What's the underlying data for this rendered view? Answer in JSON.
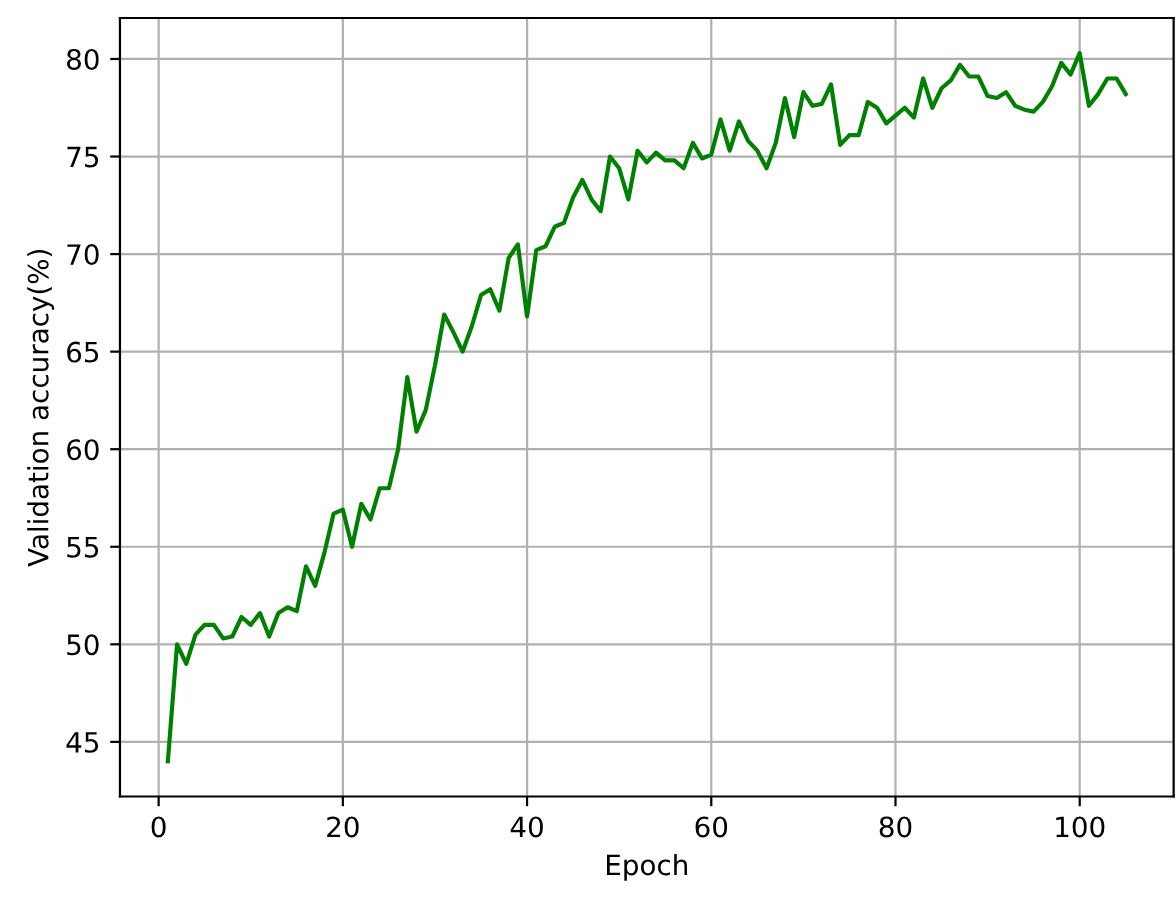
{
  "chart_data": {
    "type": "line",
    "xlabel": "Epoch",
    "ylabel": "Validation accuracy(%)",
    "x": [
      1,
      2,
      3,
      4,
      5,
      6,
      7,
      8,
      9,
      10,
      11,
      12,
      13,
      14,
      15,
      16,
      17,
      18,
      19,
      20,
      21,
      22,
      23,
      24,
      25,
      26,
      27,
      28,
      29,
      30,
      31,
      32,
      33,
      34,
      35,
      36,
      37,
      38,
      39,
      40,
      41,
      42,
      43,
      44,
      45,
      46,
      47,
      48,
      49,
      50,
      51,
      52,
      53,
      54,
      55,
      56,
      57,
      58,
      59,
      60,
      61,
      62,
      63,
      64,
      65,
      66,
      67,
      68,
      69,
      70,
      71,
      72,
      73,
      74,
      75,
      76,
      77,
      78,
      79,
      80,
      81,
      82,
      83,
      84,
      85,
      86,
      87,
      88,
      89,
      90,
      91,
      92,
      93,
      94,
      95,
      96,
      97,
      98,
      99,
      100,
      101,
      102,
      103,
      104,
      105
    ],
    "series": [
      {
        "color": "#008000",
        "values": [
          44,
          50,
          49,
          50.5,
          51,
          51,
          50.3,
          50.4,
          51.4,
          51,
          51.6,
          50.4,
          51.6,
          51.9,
          51.7,
          54,
          53,
          54.7,
          56.7,
          56.9,
          55,
          57.2,
          56.4,
          58,
          58,
          60,
          63.7,
          60.9,
          62,
          64.3,
          66.9,
          66,
          65,
          66.3,
          67.9,
          68.2,
          67.1,
          69.8,
          70.5,
          66.8,
          70.2,
          70.4,
          71.4,
          71.6,
          72.9,
          73.8,
          72.8,
          72.2,
          75,
          74.4,
          72.8,
          75.3,
          74.7,
          75.2,
          74.8,
          74.8,
          74.4,
          75.7,
          74.9,
          75.1,
          76.9,
          75.3,
          76.8,
          75.8,
          75.3,
          74.4,
          75.7,
          78,
          76,
          78.3,
          77.6,
          77.7,
          78.7,
          75.6,
          76.1,
          76.1,
          77.8,
          77.5,
          76.7,
          77.1,
          77.5,
          77,
          79,
          77.5,
          78.5,
          78.9,
          79.7,
          79.1,
          79.1,
          78.1,
          78,
          78.3,
          77.6,
          77.4,
          77.3,
          77.8,
          78.6,
          79.8,
          79.2,
          80.3,
          77.6,
          78.2,
          79,
          79,
          78.2
        ]
      }
    ],
    "xlim": [
      -4.2,
      110.2
    ],
    "ylim": [
      42.2,
      82.1
    ],
    "xticks": [
      0,
      20,
      40,
      60,
      80,
      100
    ],
    "yticks": [
      45,
      50,
      55,
      60,
      65,
      70,
      75,
      80
    ],
    "grid": true,
    "marker": "none",
    "line_style": "solid"
  }
}
